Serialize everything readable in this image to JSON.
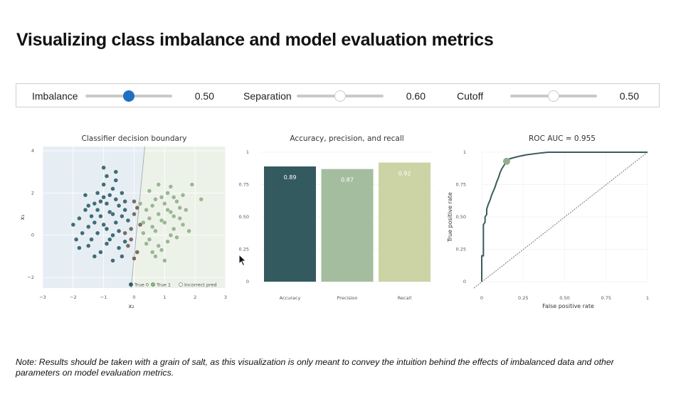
{
  "page": {
    "title": "Visualizing class imbalance and model evaluation metrics",
    "note": "Note: Results should be taken with a grain of salt, as this visualization is only meant to convey the intuition behind the effects of imbalanced data and other parameters on model evaluation metrics."
  },
  "controls": [
    {
      "label": "Imbalance",
      "value": "0.50",
      "level": 0.5,
      "active": true
    },
    {
      "label": "Separation",
      "value": "0.60",
      "level": 0.5,
      "active": false
    },
    {
      "label": "Cutoff",
      "value": "0.50",
      "level": 0.5,
      "active": false
    }
  ],
  "colors": {
    "class0": "#2e5e6b",
    "class1": "#8fb08a",
    "incorrect": "#6b5e52",
    "region0": "#e6eef4",
    "region1": "#edf2e8",
    "bar_accuracy": "#335a5e",
    "bar_precision": "#a4bd9e",
    "bar_recall": "#ccd3a4",
    "roc_line": "#3d5a5c",
    "roc_marker": "#93ae8e",
    "slider_active": "#1f6fc2"
  },
  "chart_data": [
    {
      "type": "scatter",
      "title": "Classifier decision boundary",
      "xlabel": "x₂",
      "ylabel": "x₁",
      "xlim": [
        -3,
        3
      ],
      "ylim": [
        -2.5,
        4.2
      ],
      "xticks": [
        "−3",
        "−2",
        "−1",
        "0",
        "1",
        "2",
        "3"
      ],
      "yticks": [
        "−2",
        "0",
        "2",
        "4"
      ],
      "grid": true,
      "legend": {
        "placement": "bottom-right",
        "entries": [
          "True 0",
          "True 1",
          "Incorrect pred"
        ]
      },
      "boundary": [
        [
          -0.1,
          -2.5
        ],
        [
          0.35,
          4.2
        ]
      ],
      "series": [
        {
          "name": "True 0",
          "points": [
            [
              -1.8,
              0.8
            ],
            [
              -1.6,
              1.2
            ],
            [
              -1.5,
              0.4
            ],
            [
              -1.3,
              1.5
            ],
            [
              -1.2,
              0.1
            ],
            [
              -1.1,
              0.9
            ],
            [
              -1.0,
              1.8
            ],
            [
              -0.9,
              0.3
            ],
            [
              -0.8,
              1.1
            ],
            [
              -0.7,
              2.2
            ],
            [
              -0.6,
              0.6
            ],
            [
              -0.5,
              1.4
            ],
            [
              -1.4,
              -0.2
            ],
            [
              -1.2,
              2.0
            ],
            [
              -1.0,
              0.5
            ],
            [
              -0.9,
              -0.4
            ],
            [
              -0.8,
              1.9
            ],
            [
              -0.7,
              0.0
            ],
            [
              -0.6,
              1.7
            ],
            [
              -0.5,
              -0.6
            ],
            [
              -0.4,
              0.9
            ],
            [
              -0.3,
              1.2
            ],
            [
              -1.7,
              0.1
            ],
            [
              -1.6,
              1.9
            ],
            [
              -1.5,
              -0.5
            ],
            [
              -1.3,
              0.6
            ],
            [
              -1.1,
              -0.8
            ],
            [
              -1.0,
              2.4
            ],
            [
              -0.9,
              1.5
            ],
            [
              -0.8,
              -0.2
            ],
            [
              -0.6,
              2.6
            ],
            [
              -0.5,
              0.2
            ],
            [
              -0.4,
              2.0
            ],
            [
              -0.3,
              -0.3
            ],
            [
              -2.0,
              0.5
            ],
            [
              -1.9,
              -0.2
            ],
            [
              -1.2,
              1.2
            ],
            [
              -0.7,
              1.0
            ],
            [
              -1.4,
              0.9
            ],
            [
              -1.1,
              1.6
            ],
            [
              -0.2,
              0.7
            ],
            [
              -0.3,
              1.6
            ],
            [
              -0.9,
              2.8
            ],
            [
              -1.0,
              3.2
            ],
            [
              -0.6,
              3.0
            ],
            [
              -1.3,
              -1.0
            ],
            [
              -0.7,
              -1.2
            ],
            [
              -0.4,
              -1.0
            ],
            [
              -1.8,
              -0.6
            ],
            [
              -1.5,
              1.4
            ]
          ]
        },
        {
          "name": "True 1",
          "points": [
            [
              0.5,
              0.8
            ],
            [
              0.6,
              1.4
            ],
            [
              0.7,
              0.2
            ],
            [
              0.8,
              1.0
            ],
            [
              0.9,
              1.8
            ],
            [
              1.0,
              0.6
            ],
            [
              1.1,
              1.2
            ],
            [
              1.2,
              0.0
            ],
            [
              1.3,
              0.9
            ],
            [
              1.4,
              1.6
            ],
            [
              0.5,
              -0.2
            ],
            [
              0.6,
              0.4
            ],
            [
              0.7,
              1.7
            ],
            [
              0.8,
              -0.5
            ],
            [
              0.9,
              0.7
            ],
            [
              1.0,
              1.5
            ],
            [
              1.1,
              -0.3
            ],
            [
              1.2,
              1.1
            ],
            [
              1.3,
              0.3
            ],
            [
              1.4,
              -0.1
            ],
            [
              1.5,
              1.3
            ],
            [
              1.6,
              0.5
            ],
            [
              0.4,
              1.2
            ],
            [
              0.3,
              0.6
            ],
            [
              0.4,
              -0.4
            ],
            [
              0.5,
              2.1
            ],
            [
              0.7,
              -1.0
            ],
            [
              0.9,
              -0.7
            ],
            [
              1.1,
              2.0
            ],
            [
              1.3,
              1.8
            ],
            [
              1.5,
              0.8
            ],
            [
              1.7,
              1.2
            ],
            [
              1.8,
              0.2
            ],
            [
              0.2,
              1.5
            ],
            [
              0.6,
              -0.8
            ],
            [
              1.0,
              -1.2
            ],
            [
              1.2,
              2.3
            ],
            [
              0.8,
              2.4
            ],
            [
              1.9,
              2.4
            ],
            [
              2.2,
              1.7
            ],
            [
              0.3,
              0.1
            ],
            [
              1.6,
              1.9
            ]
          ]
        },
        {
          "name": "Incorrect pred",
          "points": [
            [
              -0.1,
              0.3
            ],
            [
              0.0,
              1.0
            ],
            [
              -0.2,
              -0.5
            ],
            [
              0.1,
              -0.8
            ],
            [
              0.0,
              1.6
            ],
            [
              -0.1,
              -0.2
            ],
            [
              0.2,
              0.5
            ],
            [
              -0.3,
              0.1
            ],
            [
              0.1,
              1.3
            ],
            [
              0.0,
              -1.1
            ]
          ]
        }
      ]
    },
    {
      "type": "bar",
      "title": "Accuracy, precision, and recall",
      "categories": [
        "Accuracy",
        "Precision",
        "Recall"
      ],
      "values": [
        0.89,
        0.87,
        0.92
      ],
      "labels": [
        "0.89",
        "0.87",
        "0.92"
      ],
      "ylim": [
        0,
        1
      ],
      "yticks": [
        "0",
        "0.25",
        "0.50",
        "0.75",
        "1"
      ],
      "grid": true
    },
    {
      "type": "line",
      "title": "ROC AUC = 0.955",
      "xlabel": "False positive rate",
      "ylabel": "True positive rate",
      "xlim": [
        0,
        1
      ],
      "ylim": [
        0,
        1
      ],
      "xticks": [
        "0",
        "0.25",
        "0.50",
        "0.75",
        "1"
      ],
      "yticks": [
        "0",
        "0.25",
        "0.50",
        "0.75",
        "1"
      ],
      "grid": true,
      "series": [
        {
          "points": [
            [
              0,
              0
            ],
            [
              0,
              0.1
            ],
            [
              0,
              0.2
            ],
            [
              0.01,
              0.2
            ],
            [
              0.01,
              0.35
            ],
            [
              0.01,
              0.44
            ],
            [
              0.02,
              0.46
            ],
            [
              0.02,
              0.5
            ],
            [
              0.03,
              0.52
            ],
            [
              0.03,
              0.56
            ],
            [
              0.04,
              0.6
            ],
            [
              0.05,
              0.63
            ],
            [
              0.06,
              0.67
            ],
            [
              0.07,
              0.7
            ],
            [
              0.08,
              0.73
            ],
            [
              0.09,
              0.77
            ],
            [
              0.1,
              0.8
            ],
            [
              0.11,
              0.84
            ],
            [
              0.12,
              0.87
            ],
            [
              0.13,
              0.89
            ],
            [
              0.14,
              0.91
            ],
            [
              0.15,
              0.93
            ],
            [
              0.17,
              0.95
            ],
            [
              0.2,
              0.96
            ],
            [
              0.23,
              0.97
            ],
            [
              0.27,
              0.98
            ],
            [
              0.33,
              0.99
            ],
            [
              0.4,
              1
            ],
            [
              0.6,
              1
            ],
            [
              1,
              1
            ]
          ]
        }
      ],
      "diagonal": [
        [
          0,
          0
        ],
        [
          1,
          1
        ]
      ],
      "marker": [
        0.15,
        0.93
      ]
    }
  ]
}
